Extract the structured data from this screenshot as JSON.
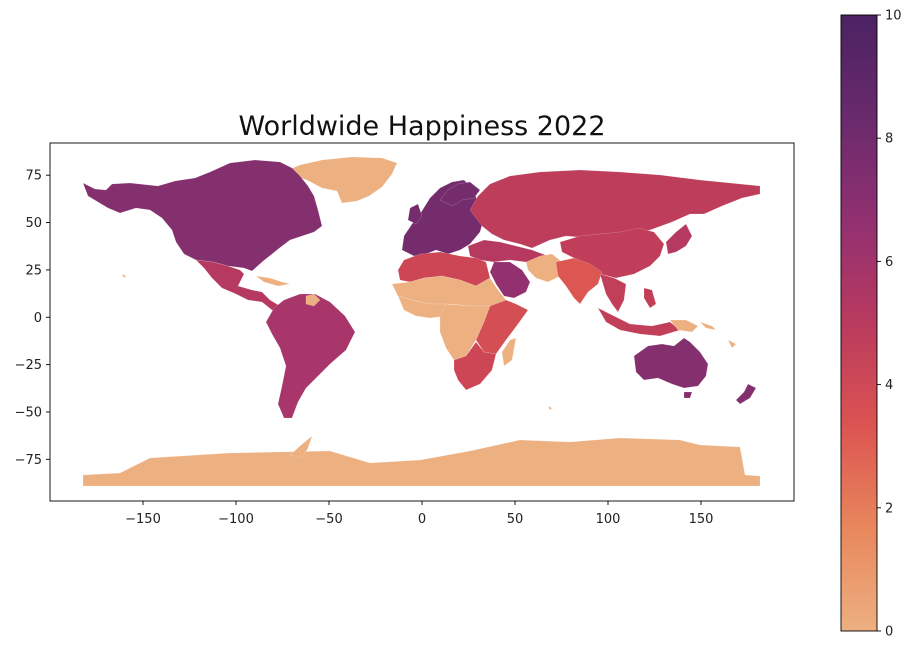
{
  "chart_data": {
    "type": "choropleth",
    "title": "Worldwide Happiness 2022",
    "xlim": [
      -200,
      200
    ],
    "ylim": [
      -97,
      92
    ],
    "x_ticks": [
      -150,
      -100,
      -50,
      0,
      50,
      100,
      150
    ],
    "x_tick_labels": [
      "−150",
      "−100",
      "−50",
      "0",
      "50",
      "100",
      "150"
    ],
    "y_ticks": [
      75,
      50,
      25,
      0,
      -25,
      -50,
      -75
    ],
    "y_tick_labels": [
      "75",
      "50",
      "25",
      "0",
      "−25",
      "−50",
      "−75"
    ],
    "colorbar": {
      "min": 0,
      "max": 10,
      "ticks": [
        0,
        2,
        4,
        6,
        8,
        10
      ],
      "tick_labels": [
        "0",
        "2",
        "4",
        "6",
        "8",
        "10"
      ],
      "colors": [
        "#edb081",
        "#e8875c",
        "#dc5451",
        "#b93a5e",
        "#913071",
        "#692a6c",
        "#4b2262"
      ]
    },
    "regions": [
      {
        "name": "North America",
        "value": 7.1,
        "color": "#84306f"
      },
      {
        "name": "Greenland",
        "value": 0,
        "color": "#edb081"
      },
      {
        "name": "Mexico and Central America",
        "value": 6.1,
        "color": "#b63a5f"
      },
      {
        "name": "South America",
        "value": 6.4,
        "color": "#a8366a"
      },
      {
        "name": "Northern Europe",
        "value": 7.5,
        "color": "#752c6d"
      },
      {
        "name": "Russia and Central Asia",
        "value": 5.6,
        "color": "#bd3d5b"
      },
      {
        "name": "China",
        "value": 5.6,
        "color": "#c13e5a"
      },
      {
        "name": "India",
        "value": 3.8,
        "color": "#dc5652"
      },
      {
        "name": "Middle East",
        "value": 6.0,
        "color": "#b63a5f"
      },
      {
        "name": "Arabian Peninsula",
        "value": 6.9,
        "color": "#93306f"
      },
      {
        "name": "North Africa",
        "value": 5.0,
        "color": "#cc4656"
      },
      {
        "name": "Sahara",
        "value": 0,
        "color": "#edb081"
      },
      {
        "name": "Central Africa",
        "value": 0,
        "color": "#edb081"
      },
      {
        "name": "East Africa",
        "value": 4.5,
        "color": "#d44f53"
      },
      {
        "name": "Southern Africa",
        "value": 4.8,
        "color": "#cc4656"
      },
      {
        "name": "Madagascar",
        "value": 0,
        "color": "#edb081"
      },
      {
        "name": "Southeast Asia",
        "value": 5.5,
        "color": "#c23f59"
      },
      {
        "name": "Japan",
        "value": 6.0,
        "color": "#b63a5f"
      },
      {
        "name": "Australia",
        "value": 7.2,
        "color": "#84306f"
      },
      {
        "name": "New Zealand",
        "value": 7.2,
        "color": "#84306f"
      },
      {
        "name": "New Guinea",
        "value": 0,
        "color": "#edb081"
      },
      {
        "name": "Antarctica",
        "value": 0,
        "color": "#edb081"
      }
    ]
  }
}
